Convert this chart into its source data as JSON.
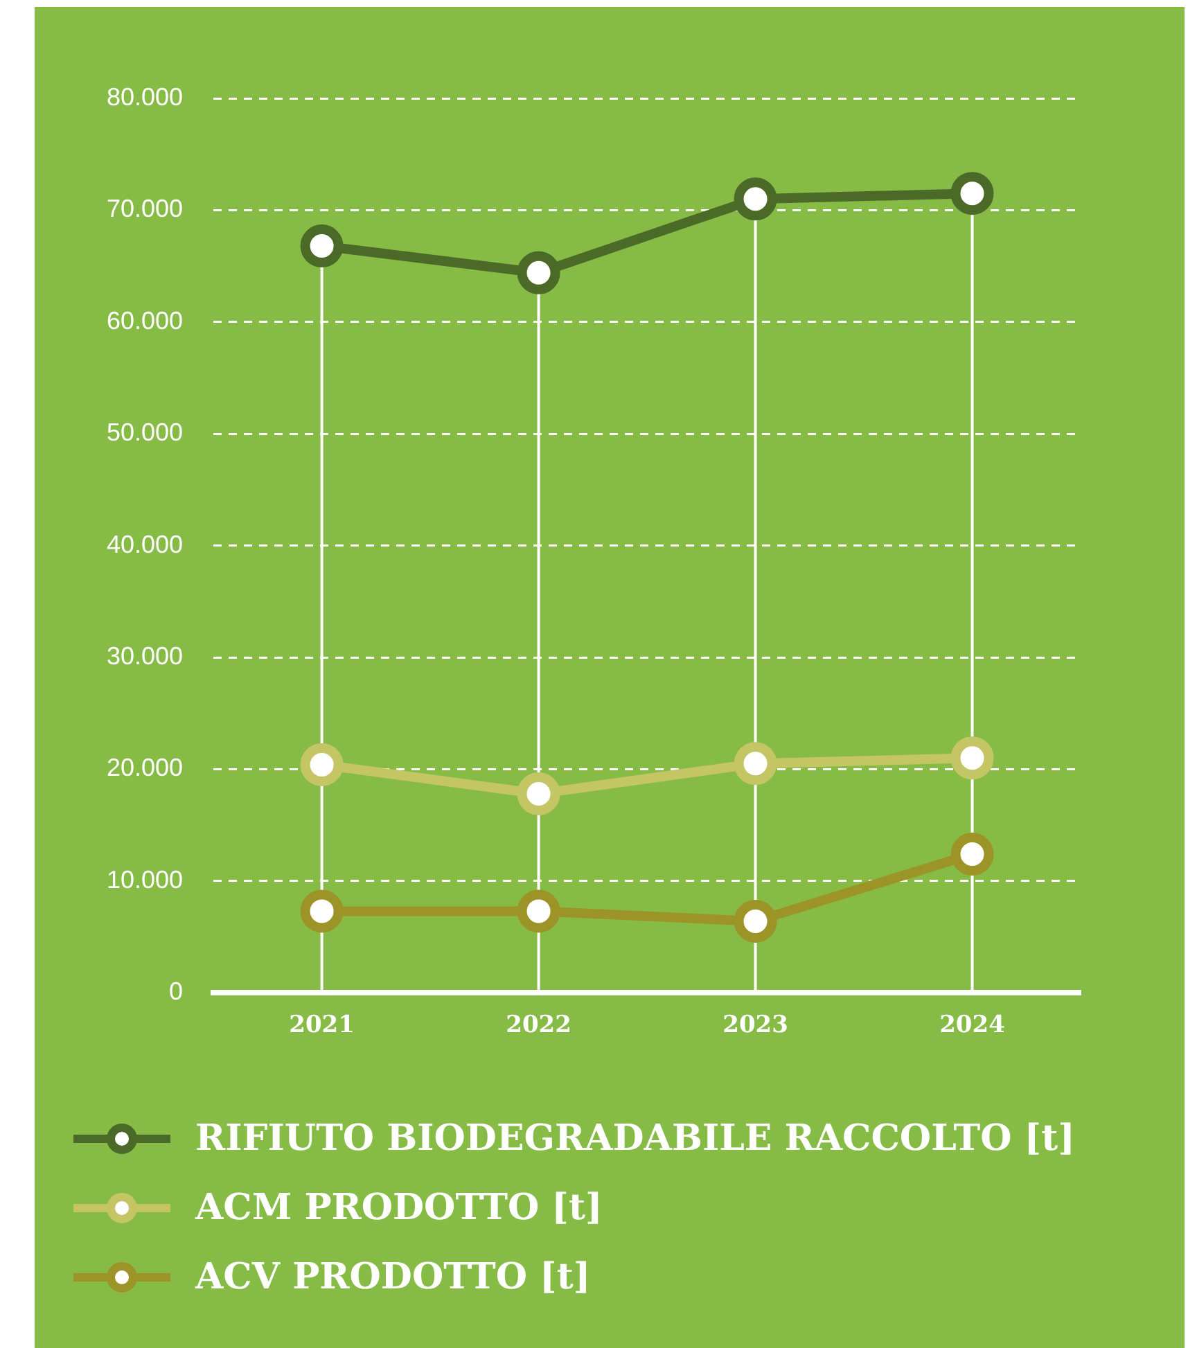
{
  "chart_data": {
    "type": "line",
    "categories": [
      "2021",
      "2022",
      "2023",
      "2024"
    ],
    "series": [
      {
        "name": "RIFIUTO BIODEGRADABILE RACCOLTO [t]",
        "color": "#4b6a27",
        "values": [
          66800,
          64400,
          71000,
          71500
        ]
      },
      {
        "name": "ACM PRODOTTO [t]",
        "color": "#c4c565",
        "values": [
          20400,
          17800,
          20500,
          21000
        ]
      },
      {
        "name": "ACV PRODOTTO [t]",
        "color": "#9d9428",
        "values": [
          7300,
          7300,
          6400,
          12400
        ]
      }
    ],
    "ylim": [
      0,
      80000
    ],
    "yticks": [
      0,
      {
        "value": 10000,
        "label": "10.000"
      },
      {
        "value": 20000,
        "label": "20.000"
      },
      {
        "value": 30000,
        "label": "30.000"
      },
      {
        "value": 40000,
        "label": "40.000"
      },
      {
        "value": 50000,
        "label": "50.000"
      },
      {
        "value": 60000,
        "label": "60.000"
      },
      {
        "value": 70000,
        "label": "70.000"
      },
      {
        "value": 80000,
        "label": "80.000"
      }
    ],
    "grid": true,
    "legend": "bottom",
    "marker": "circle",
    "line_style": "solid"
  }
}
